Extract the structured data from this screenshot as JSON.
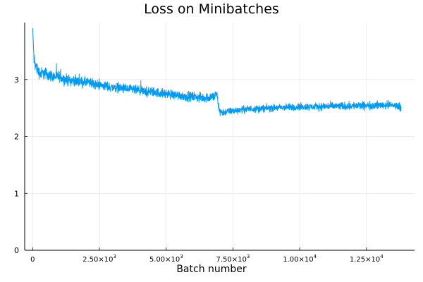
{
  "chart_data": {
    "type": "line",
    "title": "Loss on Minibatches",
    "xlabel": "Batch number",
    "ylabel": "",
    "xlim": [
      -300,
      14300
    ],
    "ylim": [
      0,
      4.0
    ],
    "grid": true,
    "legend": "none",
    "series_color": "#009af9",
    "x_ticks": [
      {
        "value": 0,
        "base": "0",
        "exp": ""
      },
      {
        "value": 2500,
        "base": "2.50×10",
        "exp": "3"
      },
      {
        "value": 5000,
        "base": "5.00×10",
        "exp": "3"
      },
      {
        "value": 7500,
        "base": "7.50×10",
        "exp": "3"
      },
      {
        "value": 10000,
        "base": "1.00×10",
        "exp": "4"
      },
      {
        "value": 12500,
        "base": "1.25×10",
        "exp": "4"
      }
    ],
    "y_ticks": [
      {
        "value": 0,
        "label": "0"
      },
      {
        "value": 1,
        "label": "1"
      },
      {
        "value": 2,
        "label": "2"
      },
      {
        "value": 3,
        "label": "3"
      }
    ],
    "series": [
      {
        "x": [
          0,
          50,
          100,
          200,
          300,
          400,
          500,
          600,
          800,
          1000,
          1200,
          1500,
          1800,
          2000,
          2300,
          2500,
          2800,
          3000,
          3300,
          3500,
          3800,
          4000,
          4300,
          4500,
          4800,
          5000,
          5300,
          5500,
          5800,
          6000,
          6300,
          6500,
          6800,
          6900,
          6950,
          7000,
          7100,
          7200,
          7500,
          7800,
          8000,
          8500,
          9000,
          9500,
          10000,
          10500,
          11000,
          11500,
          12000,
          12500,
          13000,
          13500,
          13800
        ],
        "y": [
          3.9,
          3.35,
          3.25,
          3.15,
          3.1,
          3.12,
          3.1,
          3.08,
          3.05,
          3.05,
          3.0,
          2.98,
          2.96,
          2.95,
          2.92,
          2.9,
          2.88,
          2.86,
          2.85,
          2.83,
          2.82,
          2.8,
          2.78,
          2.78,
          2.76,
          2.75,
          2.73,
          2.72,
          2.7,
          2.7,
          2.68,
          2.68,
          2.7,
          2.75,
          2.55,
          2.45,
          2.42,
          2.43,
          2.45,
          2.47,
          2.48,
          2.49,
          2.5,
          2.51,
          2.52,
          2.52,
          2.53,
          2.53,
          2.54,
          2.54,
          2.55,
          2.55,
          2.52
        ],
        "noise": [
          0.0,
          0.18,
          0.18,
          0.16,
          0.16,
          0.16,
          0.15,
          0.15,
          0.14,
          0.14,
          0.14,
          0.13,
          0.13,
          0.13,
          0.12,
          0.12,
          0.12,
          0.12,
          0.12,
          0.12,
          0.12,
          0.12,
          0.12,
          0.12,
          0.12,
          0.12,
          0.12,
          0.12,
          0.12,
          0.12,
          0.12,
          0.12,
          0.13,
          0.1,
          0.1,
          0.12,
          0.1,
          0.09,
          0.09,
          0.09,
          0.09,
          0.09,
          0.09,
          0.09,
          0.09,
          0.09,
          0.1,
          0.1,
          0.1,
          0.1,
          0.1,
          0.1,
          0.1
        ]
      }
    ]
  }
}
